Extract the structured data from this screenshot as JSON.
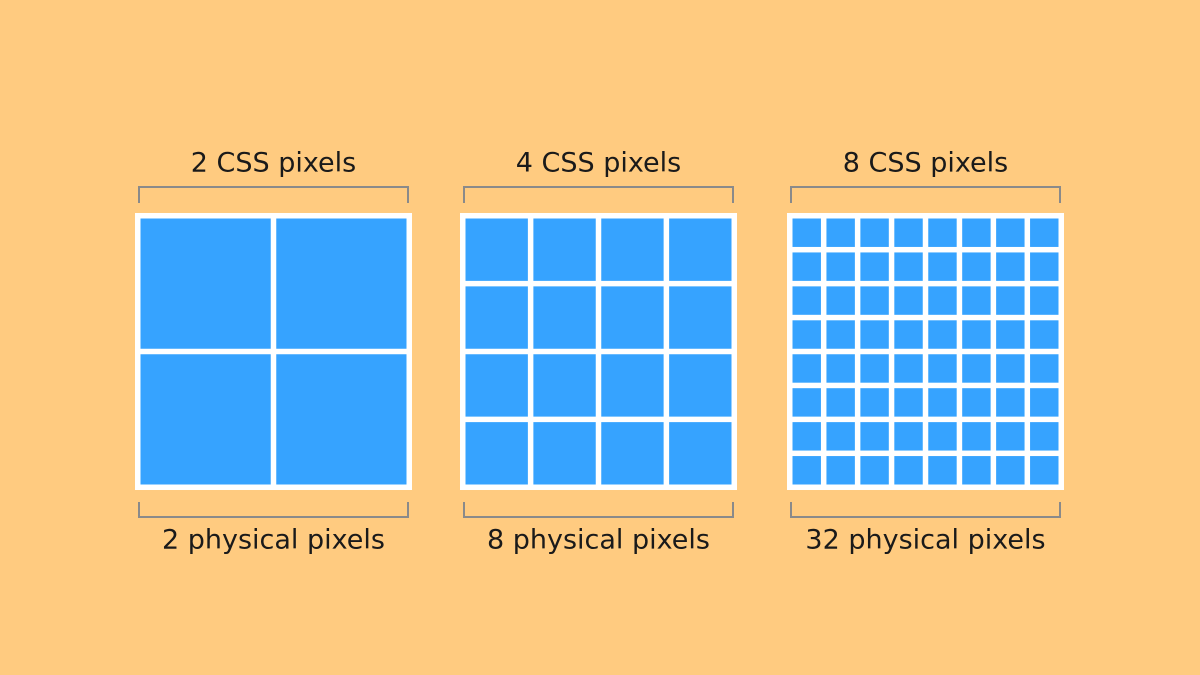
{
  "panels": [
    {
      "top_label": "2 CSS pixels",
      "bottom_label": "2 physical pixels"
    },
    {
      "top_label": "4 CSS pixels",
      "bottom_label": "8 physical pixels"
    },
    {
      "top_label": "8 CSS pixels",
      "bottom_label": "32 physical pixels"
    }
  ]
}
